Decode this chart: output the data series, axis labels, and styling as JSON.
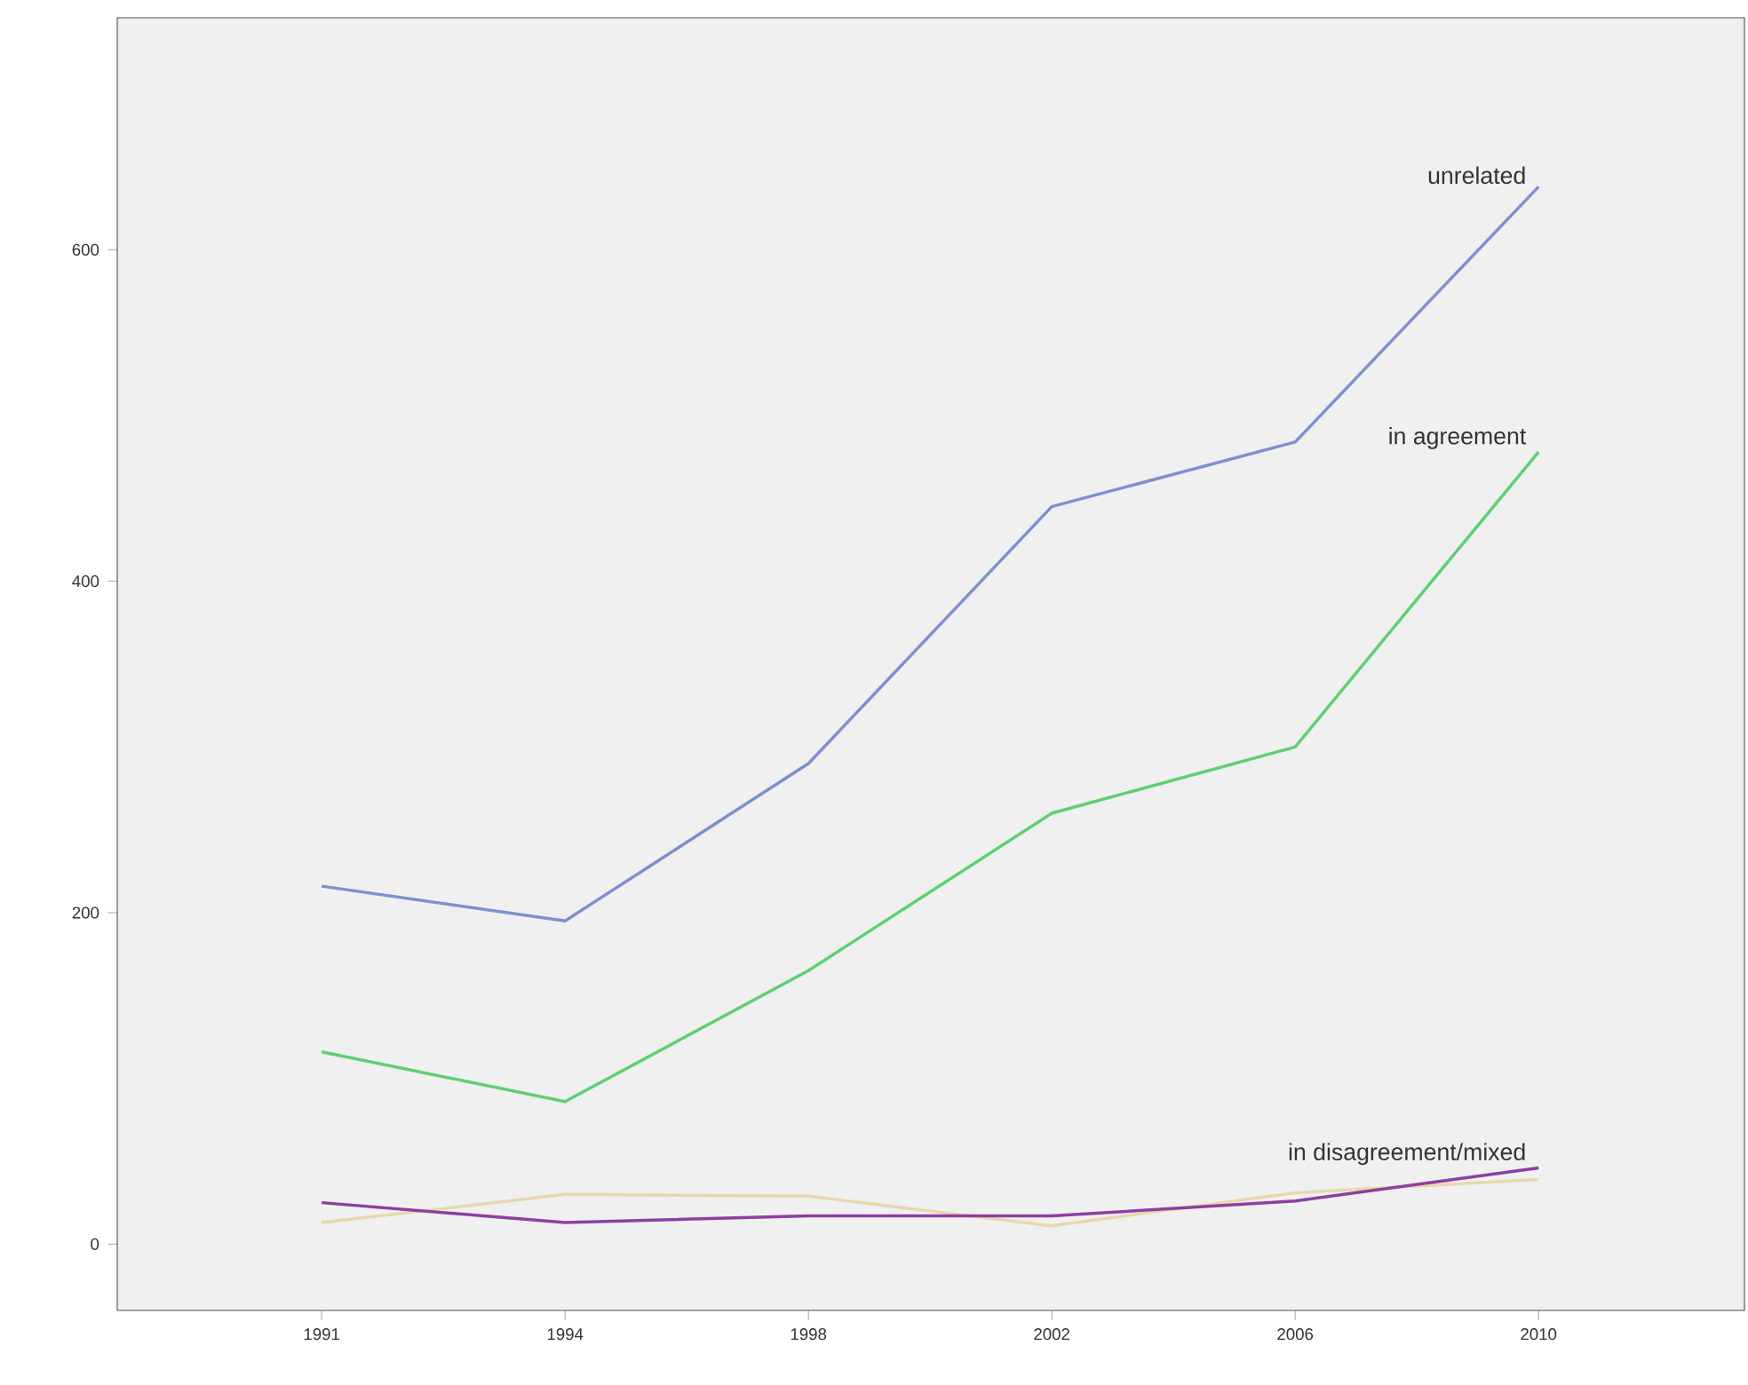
{
  "chart_data": {
    "type": "line",
    "categories": [
      "1991",
      "1994",
      "1998",
      "2002",
      "2006",
      "2010"
    ],
    "series": [
      {
        "name": "unrelated",
        "color": "#7f8fd0",
        "values": [
          216,
          195,
          290,
          445,
          484,
          638
        ]
      },
      {
        "name": "in agreement",
        "color": "#5fd070",
        "values": [
          116,
          86,
          165,
          260,
          300,
          478
        ]
      },
      {
        "color": "#e8d8b0",
        "values": [
          13,
          30,
          29,
          11,
          31,
          39
        ]
      },
      {
        "name": "in disagreement/mixed",
        "color": "#8e3ea0",
        "values": [
          25,
          13,
          17,
          17,
          26,
          46
        ]
      }
    ],
    "ylim": [
      -40,
      740
    ],
    "yticks": [
      0,
      200,
      400,
      600
    ],
    "grid": false,
    "legend": false,
    "marker": "none",
    "line_style": "solid"
  }
}
